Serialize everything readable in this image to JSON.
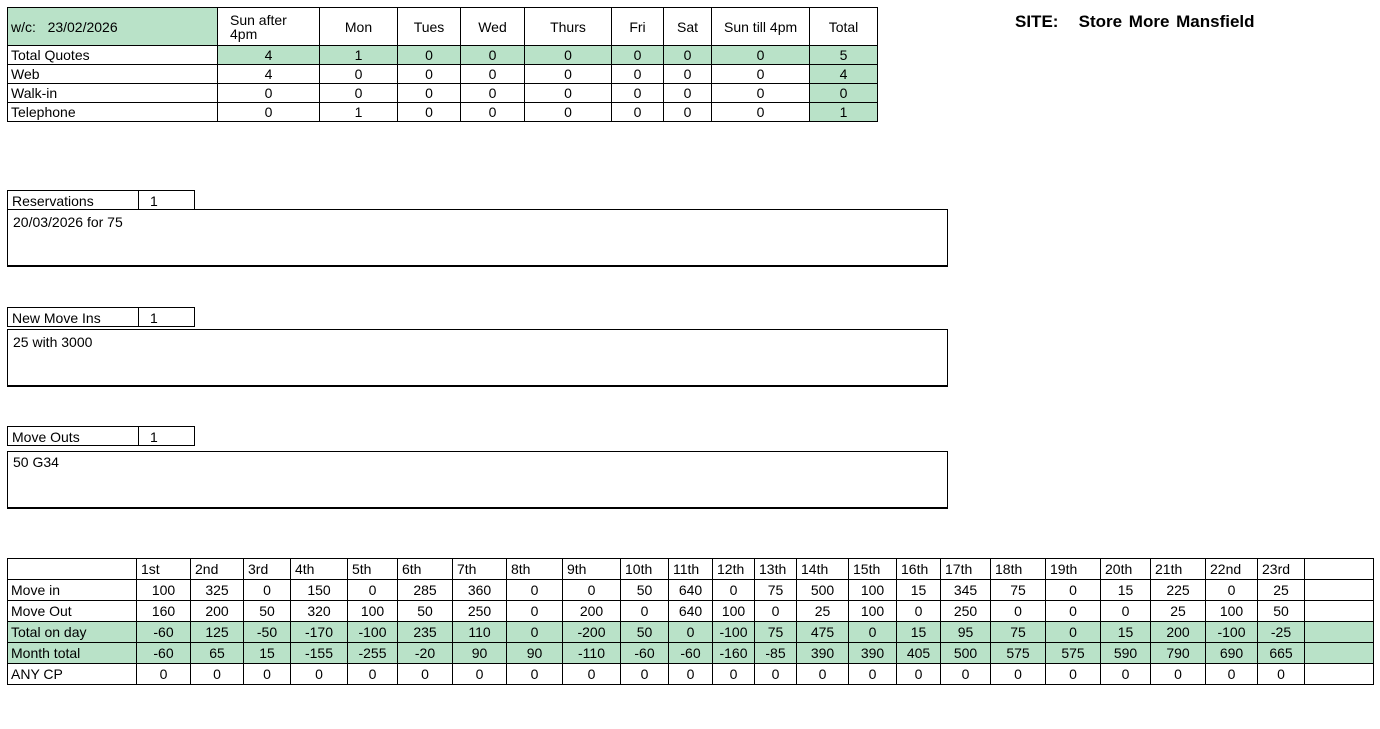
{
  "site": {
    "label": "SITE:",
    "name": "Store More Mansfield"
  },
  "quotes": {
    "wc_label": "w/c:",
    "wc_date": "23/02/2026",
    "headers": [
      "Sun after 4pm",
      "Mon",
      "Tues",
      "Wed",
      "Thurs",
      "Fri",
      "Sat",
      "Sun till 4pm",
      "Total"
    ],
    "rows": [
      {
        "label": "Total Quotes",
        "values": [
          "4",
          "1",
          "0",
          "0",
          "0",
          "0",
          "0",
          "0",
          "5"
        ]
      },
      {
        "label": "Web",
        "values": [
          "4",
          "0",
          "0",
          "0",
          "0",
          "0",
          "0",
          "0",
          "4"
        ]
      },
      {
        "label": "Walk-in",
        "values": [
          "0",
          "0",
          "0",
          "0",
          "0",
          "0",
          "0",
          "0",
          "0"
        ]
      },
      {
        "label": "Telephone",
        "values": [
          "0",
          "1",
          "0",
          "0",
          "0",
          "0",
          "0",
          "0",
          "1"
        ]
      }
    ]
  },
  "reservations": {
    "label": "Reservations",
    "count": "1",
    "text": "20/03/2026 for 75"
  },
  "move_ins": {
    "label": "New Move Ins",
    "count": "1",
    "text": "25 with 3000"
  },
  "move_outs": {
    "label": "Move Outs",
    "count": "1",
    "text": "50 G34"
  },
  "month": {
    "days": [
      "1st",
      "2nd",
      "3rd",
      "4th",
      "5th",
      "6th",
      "7th",
      "8th",
      "9th",
      "10th",
      "11th",
      "12th",
      "13th",
      "14th",
      "15th",
      "16th",
      "17th",
      "18th",
      "19th",
      "20th",
      "21th",
      "22nd",
      "23rd",
      ""
    ],
    "rows": [
      {
        "label": "Move in",
        "green": false,
        "values": [
          "100",
          "325",
          "0",
          "150",
          "0",
          "285",
          "360",
          "0",
          "0",
          "50",
          "640",
          "0",
          "75",
          "500",
          "100",
          "15",
          "345",
          "75",
          "0",
          "15",
          "225",
          "0",
          "25",
          ""
        ]
      },
      {
        "label": "Move Out",
        "green": false,
        "values": [
          "160",
          "200",
          "50",
          "320",
          "100",
          "50",
          "250",
          "0",
          "200",
          "0",
          "640",
          "100",
          "0",
          "25",
          "100",
          "0",
          "250",
          "0",
          "0",
          "0",
          "25",
          "100",
          "50",
          ""
        ]
      },
      {
        "label": "Total on day",
        "green": true,
        "values": [
          "-60",
          "125",
          "-50",
          "-170",
          "-100",
          "235",
          "110",
          "0",
          "-200",
          "50",
          "0",
          "-100",
          "75",
          "475",
          "0",
          "15",
          "95",
          "75",
          "0",
          "15",
          "200",
          "-100",
          "-25",
          ""
        ]
      },
      {
        "label": "Month total",
        "green": true,
        "values": [
          "-60",
          "65",
          "15",
          "-155",
          "-255",
          "-20",
          "90",
          "90",
          "-110",
          "-60",
          "-60",
          "-160",
          "-85",
          "390",
          "390",
          "405",
          "500",
          "575",
          "575",
          "590",
          "790",
          "690",
          "665",
          ""
        ]
      },
      {
        "label": "ANY CP",
        "green": false,
        "values": [
          "0",
          "0",
          "0",
          "0",
          "0",
          "0",
          "0",
          "0",
          "0",
          "0",
          "0",
          "0",
          "0",
          "0",
          "0",
          "0",
          "0",
          "0",
          "0",
          "0",
          "0",
          "0",
          "0",
          ""
        ]
      }
    ]
  },
  "colors": {
    "highlight": "#b9e2c8"
  }
}
